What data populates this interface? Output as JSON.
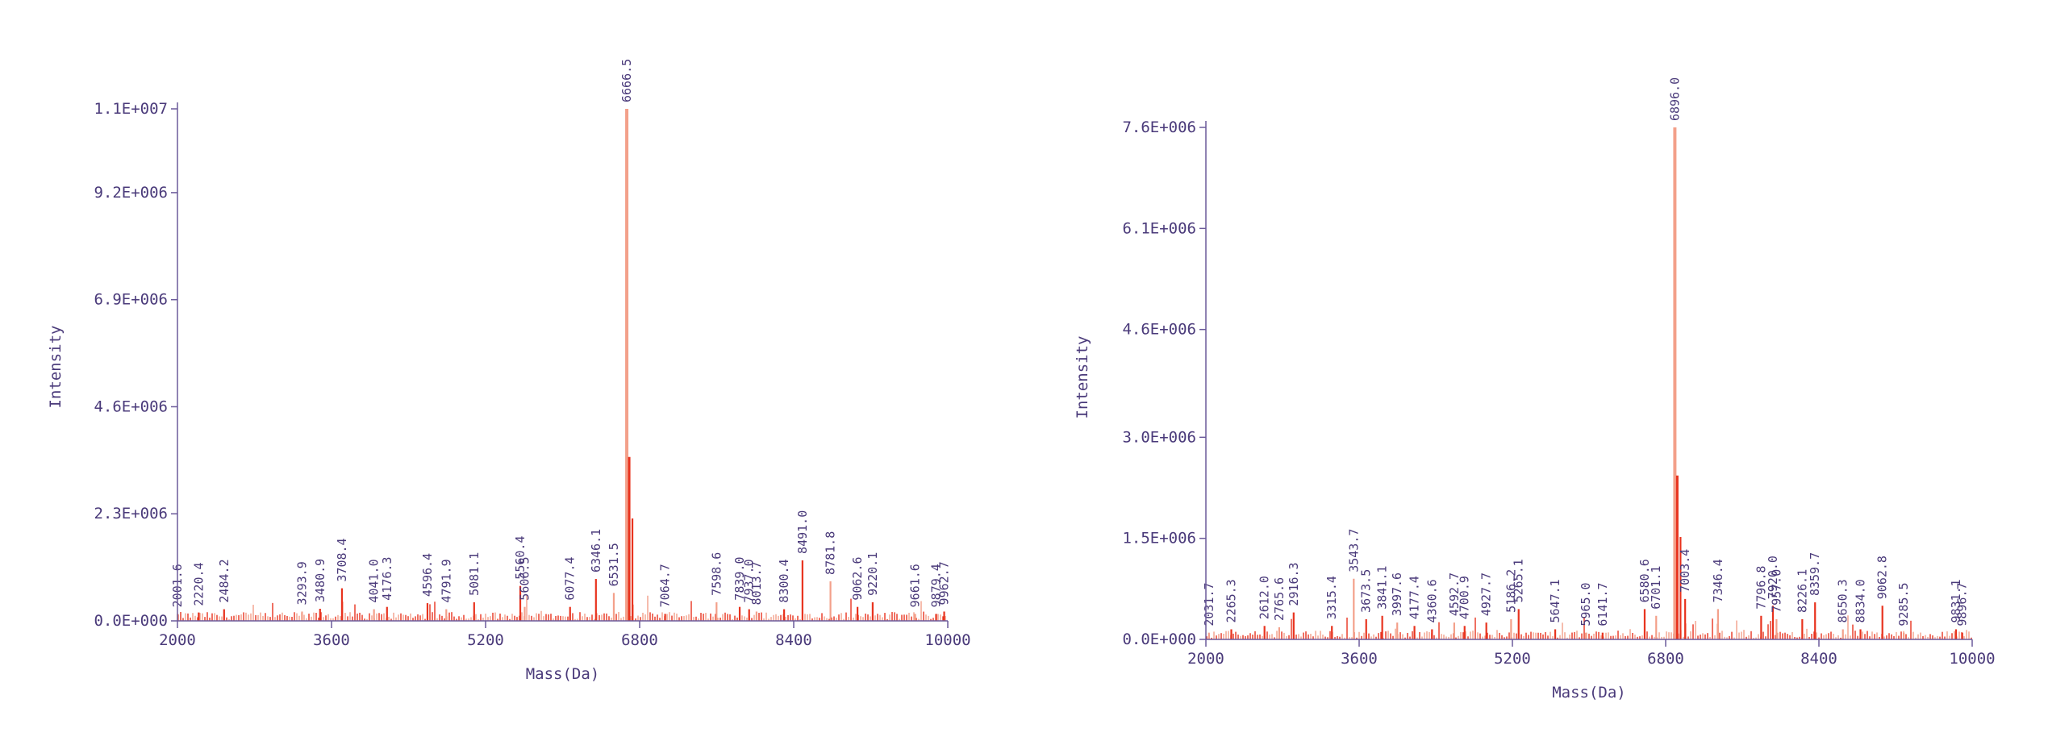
{
  "colors": {
    "axis": "#6b5a9a",
    "peak": "#e8331e",
    "peak_light": "#f3a08a",
    "text": "#4a3a7a"
  },
  "chart_data": [
    {
      "type": "line",
      "xlabel": "Mass(Da)",
      "ylabel": "Intensity",
      "xlim": [
        2000,
        10000
      ],
      "ylim": [
        0,
        11000000
      ],
      "xticks": [
        2000,
        3600,
        5200,
        6800,
        8400,
        10000
      ],
      "yticks": [
        0,
        2300000,
        4600000,
        6900000,
        9200000,
        11000000
      ],
      "ytick_labels": [
        "0.0E+000",
        "2.3E+006",
        "4.6E+006",
        "6.9E+006",
        "9.2E+006",
        "1.1E+007"
      ],
      "peaks": [
        {
          "mass": 2001.6,
          "label": "2001.6",
          "intensity": 150000
        },
        {
          "mass": 2220.4,
          "label": "2220.4",
          "intensity": 180000
        },
        {
          "mass": 2484.2,
          "label": "2484.2",
          "intensity": 250000
        },
        {
          "mass": 3293.9,
          "label": "3293.9",
          "intensity": 200000
        },
        {
          "mass": 3480.9,
          "label": "3480.9",
          "intensity": 260000
        },
        {
          "mass": 3708.4,
          "label": "3708.4",
          "intensity": 700000
        },
        {
          "mass": 4041.0,
          "label": "4041.0",
          "intensity": 250000
        },
        {
          "mass": 4176.3,
          "label": "4176.3",
          "intensity": 300000
        },
        {
          "mass": 4596.4,
          "label": "4596.4",
          "intensity": 380000
        },
        {
          "mass": 4791.9,
          "label": "4791.9",
          "intensity": 250000
        },
        {
          "mass": 5081.1,
          "label": "5081.1",
          "intensity": 400000
        },
        {
          "mass": 5560.4,
          "label": "5560.4",
          "intensity": 750000
        },
        {
          "mass": 5606.5,
          "label": "5606.5",
          "intensity": 300000
        },
        {
          "mass": 6077.4,
          "label": "6077.4",
          "intensity": 300000
        },
        {
          "mass": 6346.1,
          "label": "6346.1",
          "intensity": 900000
        },
        {
          "mass": 6531.5,
          "label": "6531.5",
          "intensity": 600000
        },
        {
          "mass": 6666.5,
          "label": "6666.5",
          "intensity": 11000000
        },
        {
          "mass": 7064.7,
          "label": "7064.7",
          "intensity": 150000
        },
        {
          "mass": 7598.6,
          "label": "7598.6",
          "intensity": 400000
        },
        {
          "mass": 7839.0,
          "label": "7839.0",
          "intensity": 300000
        },
        {
          "mass": 7937.0,
          "label": "7937.0",
          "intensity": 250000
        },
        {
          "mass": 8013.7,
          "label": "8013.7",
          "intensity": 200000
        },
        {
          "mass": 8300.4,
          "label": "8300.4",
          "intensity": 250000
        },
        {
          "mass": 8491.0,
          "label": "8491.0",
          "intensity": 1300000
        },
        {
          "mass": 8781.8,
          "label": "8781.8",
          "intensity": 850000
        },
        {
          "mass": 9062.6,
          "label": "9062.6",
          "intensity": 300000
        },
        {
          "mass": 9220.1,
          "label": "9220.1",
          "intensity": 400000
        },
        {
          "mass": 9661.6,
          "label": "9661.6",
          "intensity": 150000
        },
        {
          "mass": 9879.4,
          "label": "9879.4",
          "intensity": 150000
        },
        {
          "mass": 9962.7,
          "label": "9962.7",
          "intensity": 200000
        }
      ]
    },
    {
      "type": "line",
      "xlabel": "Mass(Da)",
      "ylabel": "Intensity",
      "xlim": [
        2000,
        10000
      ],
      "ylim": [
        0,
        7600000
      ],
      "xticks": [
        2000,
        3600,
        5200,
        6800,
        8400,
        10000
      ],
      "yticks": [
        0,
        1500000,
        3000000,
        4600000,
        6100000,
        7600000
      ],
      "ytick_labels": [
        "0.0E+000",
        "1.5E+006",
        "3.0E+006",
        "4.6E+006",
        "6.1E+006",
        "7.6E+006"
      ],
      "peaks": [
        {
          "mass": 2031.7,
          "label": "2031.7",
          "intensity": 100000
        },
        {
          "mass": 2265.3,
          "label": "2265.3",
          "intensity": 150000
        },
        {
          "mass": 2612.0,
          "label": "2612.0",
          "intensity": 200000
        },
        {
          "mass": 2765.6,
          "label": "2765.6",
          "intensity": 180000
        },
        {
          "mass": 2916.3,
          "label": "2916.3",
          "intensity": 400000
        },
        {
          "mass": 3315.4,
          "label": "3315.4",
          "intensity": 200000
        },
        {
          "mass": 3543.7,
          "label": "3543.7",
          "intensity": 900000
        },
        {
          "mass": 3673.5,
          "label": "3673.5",
          "intensity": 300000
        },
        {
          "mass": 3841.1,
          "label": "3841.1",
          "intensity": 350000
        },
        {
          "mass": 3997.6,
          "label": "3997.6",
          "intensity": 250000
        },
        {
          "mass": 4177.4,
          "label": "4177.4",
          "intensity": 200000
        },
        {
          "mass": 4360.6,
          "label": "4360.6",
          "intensity": 150000
        },
        {
          "mass": 4592.7,
          "label": "4592.7",
          "intensity": 250000
        },
        {
          "mass": 4700.9,
          "label": "4700.9",
          "intensity": 200000
        },
        {
          "mass": 4927.7,
          "label": "4927.7",
          "intensity": 250000
        },
        {
          "mass": 5186.2,
          "label": "5186.2",
          "intensity": 300000
        },
        {
          "mass": 5265.1,
          "label": "5265.1",
          "intensity": 450000
        },
        {
          "mass": 5647.1,
          "label": "5647.1",
          "intensity": 150000
        },
        {
          "mass": 5965.0,
          "label": "5965.0",
          "intensity": 100000
        },
        {
          "mass": 6141.7,
          "label": "6141.7",
          "intensity": 100000
        },
        {
          "mass": 6580.6,
          "label": "6580.6",
          "intensity": 450000
        },
        {
          "mass": 6701.1,
          "label": "6701.1",
          "intensity": 350000
        },
        {
          "mass": 6896.0,
          "label": "6896.0",
          "intensity": 7600000
        },
        {
          "mass": 7003.4,
          "label": "7003.4",
          "intensity": 600000
        },
        {
          "mass": 7346.4,
          "label": "7346.4",
          "intensity": 450000
        },
        {
          "mass": 7796.8,
          "label": "7796.8",
          "intensity": 350000
        },
        {
          "mass": 7920.0,
          "label": "7920.0",
          "intensity": 500000
        },
        {
          "mass": 7957.0,
          "label": "7957.0",
          "intensity": 300000
        },
        {
          "mass": 8226.1,
          "label": "8226.1",
          "intensity": 300000
        },
        {
          "mass": 8359.7,
          "label": "8359.7",
          "intensity": 550000
        },
        {
          "mass": 8650.3,
          "label": "8650.3",
          "intensity": 150000
        },
        {
          "mass": 8834.0,
          "label": "8834.0",
          "intensity": 150000
        },
        {
          "mass": 9062.8,
          "label": "9062.8",
          "intensity": 500000
        },
        {
          "mass": 9285.5,
          "label": "9285.5",
          "intensity": 100000
        },
        {
          "mass": 9831.1,
          "label": "9831.1",
          "intensity": 150000
        },
        {
          "mass": 9896.7,
          "label": "9896.7",
          "intensity": 100000
        }
      ]
    }
  ]
}
